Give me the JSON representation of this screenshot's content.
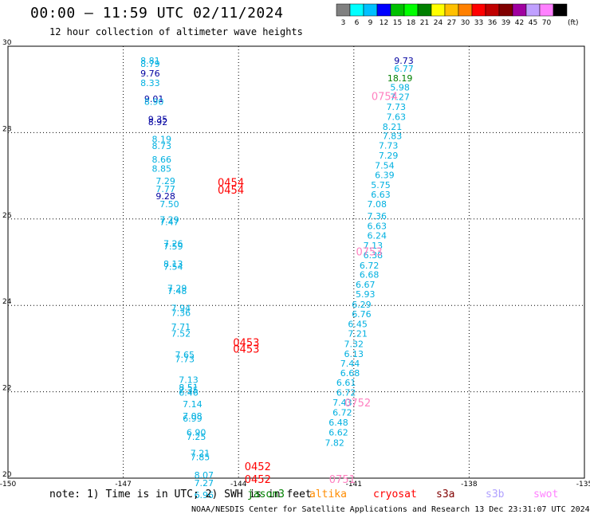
{
  "header": {
    "title": "00:00 – 11:59 UTC 02/11/2024",
    "subtitle": "12 hour collection of altimeter wave heights"
  },
  "legend": {
    "unit": "(ft)",
    "bins": [
      {
        "label": "3",
        "color": "#808080"
      },
      {
        "label": "6",
        "color": "#00ffff"
      },
      {
        "label": "9",
        "color": "#00c0ff"
      },
      {
        "label": "12",
        "color": "#0000ff"
      },
      {
        "label": "15",
        "color": "#00c000"
      },
      {
        "label": "18",
        "color": "#00ff00"
      },
      {
        "label": "21",
        "color": "#008000"
      },
      {
        "label": "24",
        "color": "#ffff00"
      },
      {
        "label": "27",
        "color": "#ffc000"
      },
      {
        "label": "30",
        "color": "#ff8000"
      },
      {
        "label": "33",
        "color": "#ff0000"
      },
      {
        "label": "36",
        "color": "#c00000"
      },
      {
        "label": "39",
        "color": "#800000"
      },
      {
        "label": "42",
        "color": "#a000a0"
      },
      {
        "label": "45",
        "color": "#c0a0ff"
      },
      {
        "label": "70",
        "color": "#ff80ff"
      },
      {
        "label": "",
        "color": "#000000"
      }
    ]
  },
  "note": "note: 1) Time is in UTC; 2) SWH is in feet",
  "satellites": [
    {
      "name": "jason3",
      "color": "#008000"
    },
    {
      "name": "altika",
      "color": "#ff8c00"
    },
    {
      "name": "cryosat",
      "color": "#ff0000"
    },
    {
      "name": "s3a",
      "color": "#800000"
    },
    {
      "name": "s3b",
      "color": "#b0a0ff"
    },
    {
      "name": "swot",
      "color": "#ff80ff"
    }
  ],
  "footer": "NOAA/NESDIS Center for Satellite Applications and Research     13 Dec 23:31:07 UTC 2024",
  "colors": {
    "cyan": "#00b0e0",
    "blue": "#0000a0",
    "green": "#008000",
    "time_red": "#ff0000",
    "time_pink": "#ff80c0"
  },
  "chart_data": {
    "type": "scatter",
    "title": "12 hour collection of altimeter wave heights",
    "xlim": [
      -150,
      -135
    ],
    "ylim": [
      20,
      30
    ],
    "x_ticks": [
      "-150",
      "-147",
      "-144",
      "-141",
      "-138",
      "-135"
    ],
    "x_tick_values": [
      -150,
      -147,
      -144,
      -141,
      -138,
      -135
    ],
    "y_ticks": [
      "20",
      "22",
      "24",
      "26",
      "28",
      "30"
    ],
    "y_tick_values": [
      20,
      22,
      24,
      26,
      28,
      30
    ],
    "grid": true,
    "track_labels": [
      {
        "text": "0454",
        "lon": -144.2,
        "lat": 26.85,
        "color": "#ff0000"
      },
      {
        "text": "0454",
        "lon": -144.2,
        "lat": 26.68,
        "color": "#ff0000"
      },
      {
        "text": "0453",
        "lon": -143.8,
        "lat": 23.15,
        "color": "#ff0000"
      },
      {
        "text": "0453",
        "lon": -143.8,
        "lat": 23.0,
        "color": "#ff0000"
      },
      {
        "text": "0452",
        "lon": -143.5,
        "lat": 20.28,
        "color": "#ff0000"
      },
      {
        "text": "0452",
        "lon": -143.5,
        "lat": 19.98,
        "color": "#ff0000"
      },
      {
        "text": "0754",
        "lon": -140.2,
        "lat": 28.85,
        "color": "#ff80c0"
      },
      {
        "text": "0753",
        "lon": -140.6,
        "lat": 25.25,
        "color": "#ff80c0"
      },
      {
        "text": "0752",
        "lon": -140.9,
        "lat": 21.75,
        "color": "#ff80c0"
      },
      {
        "text": "0751",
        "lon": -141.3,
        "lat": 19.98,
        "color": "#ff80c0"
      }
    ],
    "series": [
      {
        "name": "swot",
        "color": "#00b0e0",
        "points": [
          {
            "lon": -146.3,
            "lat": 29.67,
            "v": "8.81"
          },
          {
            "lon": -146.3,
            "lat": 29.59,
            "v": "8.79"
          },
          {
            "lon": -146.3,
            "lat": 29.37,
            "v": "9.76",
            "c": "#0000a0"
          },
          {
            "lon": -146.3,
            "lat": 29.15,
            "v": "8.33"
          },
          {
            "lon": -146.2,
            "lat": 28.78,
            "v": "9.01",
            "c": "#0000a0"
          },
          {
            "lon": -146.2,
            "lat": 28.72,
            "v": "8.90"
          },
          {
            "lon": -146.1,
            "lat": 28.31,
            "v": "9.35",
            "c": "#0000a0"
          },
          {
            "lon": -146.1,
            "lat": 28.25,
            "v": "8.92",
            "c": "#0000a0"
          },
          {
            "lon": -146.0,
            "lat": 27.85,
            "v": "8.19"
          },
          {
            "lon": -146.0,
            "lat": 27.69,
            "v": "8.73"
          },
          {
            "lon": -146.0,
            "lat": 27.38,
            "v": "8.66"
          },
          {
            "lon": -146.0,
            "lat": 27.17,
            "v": "8.85"
          },
          {
            "lon": -145.9,
            "lat": 26.88,
            "v": "7.29"
          },
          {
            "lon": -145.9,
            "lat": 26.7,
            "v": "7.77"
          },
          {
            "lon": -145.9,
            "lat": 26.53,
            "v": "9.28",
            "c": "#0000a0"
          },
          {
            "lon": -145.8,
            "lat": 26.35,
            "v": "7.50"
          },
          {
            "lon": -145.8,
            "lat": 25.99,
            "v": "7.29"
          },
          {
            "lon": -145.8,
            "lat": 25.93,
            "v": "7.47"
          },
          {
            "lon": -145.7,
            "lat": 25.43,
            "v": "7.26"
          },
          {
            "lon": -145.7,
            "lat": 25.37,
            "v": "7.59"
          },
          {
            "lon": -145.7,
            "lat": 24.96,
            "v": "8.13"
          },
          {
            "lon": -145.7,
            "lat": 24.9,
            "v": "7.54"
          },
          {
            "lon": -145.6,
            "lat": 24.4,
            "v": "7.29"
          },
          {
            "lon": -145.6,
            "lat": 24.34,
            "v": "7.48"
          },
          {
            "lon": -145.5,
            "lat": 23.94,
            "v": "7.94"
          },
          {
            "lon": -145.5,
            "lat": 23.83,
            "v": "7.36"
          },
          {
            "lon": -145.5,
            "lat": 23.51,
            "v": "7.71"
          },
          {
            "lon": -145.5,
            "lat": 23.35,
            "v": "7.52"
          },
          {
            "lon": -145.4,
            "lat": 22.86,
            "v": "7.65"
          },
          {
            "lon": -145.4,
            "lat": 22.76,
            "v": "7.73"
          },
          {
            "lon": -145.3,
            "lat": 22.28,
            "v": "7.13"
          },
          {
            "lon": -145.3,
            "lat": 22.1,
            "v": "8.51"
          },
          {
            "lon": -145.3,
            "lat": 22.04,
            "v": "7.35"
          },
          {
            "lon": -145.3,
            "lat": 21.98,
            "v": "6.46"
          },
          {
            "lon": -145.2,
            "lat": 21.72,
            "v": "7.14"
          },
          {
            "lon": -145.2,
            "lat": 21.44,
            "v": "7.08"
          },
          {
            "lon": -145.2,
            "lat": 21.38,
            "v": "6.99"
          },
          {
            "lon": -145.1,
            "lat": 21.06,
            "v": "6.90"
          },
          {
            "lon": -145.1,
            "lat": 20.96,
            "v": "7.25"
          },
          {
            "lon": -145.0,
            "lat": 20.58,
            "v": "7.21"
          },
          {
            "lon": -145.0,
            "lat": 20.49,
            "v": "7.85"
          },
          {
            "lon": -144.9,
            "lat": 20.07,
            "v": "8.07"
          },
          {
            "lon": -144.9,
            "lat": 19.89,
            "v": "7.27"
          },
          {
            "lon": -144.9,
            "lat": 19.61,
            "v": "6.96"
          }
        ]
      },
      {
        "name": "jason3",
        "color": "#00b0e0",
        "points": [
          {
            "lon": -139.7,
            "lat": 29.67,
            "v": "9.73",
            "c": "#0000a0"
          },
          {
            "lon": -139.7,
            "lat": 29.48,
            "v": "6.77"
          },
          {
            "lon": -139.8,
            "lat": 29.26,
            "v": "18.19",
            "c": "#008000"
          },
          {
            "lon": -139.8,
            "lat": 29.05,
            "v": "5.98"
          },
          {
            "lon": -139.8,
            "lat": 28.83,
            "v": "7.27"
          },
          {
            "lon": -139.9,
            "lat": 28.6,
            "v": "7.73"
          },
          {
            "lon": -139.9,
            "lat": 28.37,
            "v": "7.63"
          },
          {
            "lon": -140.0,
            "lat": 28.14,
            "v": "8.21"
          },
          {
            "lon": -140.0,
            "lat": 27.92,
            "v": "7.83"
          },
          {
            "lon": -140.1,
            "lat": 27.7,
            "v": "7.73"
          },
          {
            "lon": -140.1,
            "lat": 27.47,
            "v": "7.29"
          },
          {
            "lon": -140.2,
            "lat": 27.24,
            "v": "7.54"
          },
          {
            "lon": -140.2,
            "lat": 27.02,
            "v": "6.39"
          },
          {
            "lon": -140.3,
            "lat": 26.79,
            "v": "5.75"
          },
          {
            "lon": -140.3,
            "lat": 26.57,
            "v": "6.63"
          },
          {
            "lon": -140.4,
            "lat": 26.35,
            "v": "7.08"
          },
          {
            "lon": -140.4,
            "lat": 26.07,
            "v": "7.36"
          },
          {
            "lon": -140.4,
            "lat": 25.84,
            "v": "6.63"
          },
          {
            "lon": -140.4,
            "lat": 25.62,
            "v": "6.24"
          },
          {
            "lon": -140.5,
            "lat": 25.39,
            "v": "7.13"
          },
          {
            "lon": -140.5,
            "lat": 25.17,
            "v": "6.38"
          },
          {
            "lon": -140.6,
            "lat": 24.93,
            "v": "6.72"
          },
          {
            "lon": -140.6,
            "lat": 24.71,
            "v": "6.68"
          },
          {
            "lon": -140.7,
            "lat": 24.48,
            "v": "6.67"
          },
          {
            "lon": -140.7,
            "lat": 24.26,
            "v": "5.93"
          },
          {
            "lon": -140.8,
            "lat": 24.02,
            "v": "6.29"
          },
          {
            "lon": -140.8,
            "lat": 23.8,
            "v": "6.76"
          },
          {
            "lon": -140.9,
            "lat": 23.57,
            "v": "6.45"
          },
          {
            "lon": -140.9,
            "lat": 23.35,
            "v": "7.21"
          },
          {
            "lon": -141.0,
            "lat": 23.11,
            "v": "7.32"
          },
          {
            "lon": -141.0,
            "lat": 22.88,
            "v": "6.13"
          },
          {
            "lon": -141.1,
            "lat": 22.66,
            "v": "7.44"
          },
          {
            "lon": -141.1,
            "lat": 22.44,
            "v": "6.68"
          },
          {
            "lon": -141.2,
            "lat": 22.21,
            "v": "6.61"
          },
          {
            "lon": -141.2,
            "lat": 21.98,
            "v": "6.72"
          },
          {
            "lon": -141.3,
            "lat": 21.75,
            "v": "7.43"
          },
          {
            "lon": -141.3,
            "lat": 21.52,
            "v": "6.72"
          },
          {
            "lon": -141.4,
            "lat": 21.29,
            "v": "6.48"
          },
          {
            "lon": -141.4,
            "lat": 21.06,
            "v": "6.62"
          },
          {
            "lon": -141.5,
            "lat": 20.82,
            "v": "7.82"
          }
        ]
      }
    ]
  }
}
